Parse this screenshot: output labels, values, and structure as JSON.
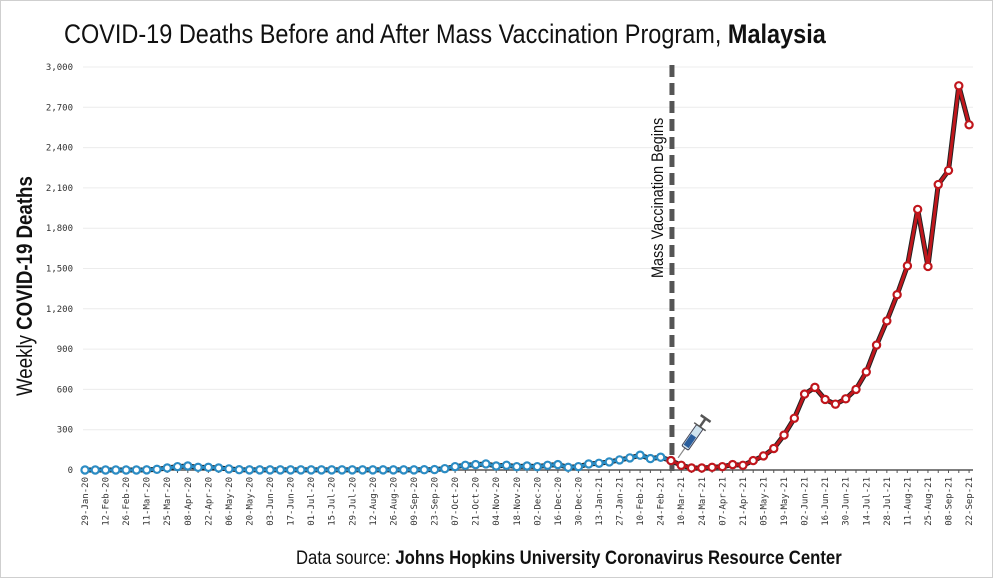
{
  "chart_data": {
    "type": "line",
    "title": "COVID-19 Deaths Before and After Mass Vaccination Program,",
    "title_bold": "Malaysia",
    "ylabel_prefix": "Weekly",
    "ylabel_bold": "COVID-19 Deaths",
    "ylim": [
      0,
      3000
    ],
    "yticks": [
      "0",
      "300",
      "600",
      "900",
      "1,200",
      "1,500",
      "1,800",
      "2,100",
      "2,400",
      "2,700",
      "3,000"
    ],
    "ytick_values": [
      0,
      300,
      600,
      900,
      1200,
      1500,
      1800,
      2100,
      2400,
      2700,
      3000
    ],
    "grid": true,
    "xtick_labels": [
      "29-Jan-20",
      "12-Feb-20",
      "26-Feb-20",
      "11-Mar-20",
      "25-Mar-20",
      "08-Apr-20",
      "22-Apr-20",
      "06-May-20",
      "20-May-20",
      "03-Jun-20",
      "17-Jun-20",
      "01-Jul-20",
      "15-Jul-20",
      "29-Jul-20",
      "12-Aug-20",
      "26-Aug-20",
      "09-Sep-20",
      "23-Sep-20",
      "07-Oct-20",
      "21-Oct-20",
      "04-Nov-20",
      "18-Nov-20",
      "02-Dec-20",
      "16-Dec-20",
      "30-Dec-20",
      "13-Jan-21",
      "27-Jan-21",
      "10-Feb-21",
      "24-Feb-21",
      "10-Mar-21",
      "24-Mar-21",
      "07-Apr-21",
      "21-Apr-21",
      "05-May-21",
      "19-May-21",
      "02-Jun-21",
      "16-Jun-21",
      "30-Jun-21",
      "14-Jul-21",
      "28-Jul-21",
      "11-Aug-21",
      "25-Aug-21",
      "08-Sep-21",
      "22-Sep-21"
    ],
    "x": [
      "29-Jan-20",
      "05-Feb-20",
      "12-Feb-20",
      "19-Feb-20",
      "26-Feb-20",
      "04-Mar-20",
      "11-Mar-20",
      "18-Mar-20",
      "25-Mar-20",
      "01-Apr-20",
      "08-Apr-20",
      "15-Apr-20",
      "22-Apr-20",
      "29-Apr-20",
      "06-May-20",
      "13-May-20",
      "20-May-20",
      "27-May-20",
      "03-Jun-20",
      "10-Jun-20",
      "17-Jun-20",
      "24-Jun-20",
      "01-Jul-20",
      "08-Jul-20",
      "15-Jul-20",
      "22-Jul-20",
      "29-Jul-20",
      "05-Aug-20",
      "12-Aug-20",
      "19-Aug-20",
      "26-Aug-20",
      "02-Sep-20",
      "09-Sep-20",
      "16-Sep-20",
      "23-Sep-20",
      "30-Sep-20",
      "07-Oct-20",
      "14-Oct-20",
      "21-Oct-20",
      "28-Oct-20",
      "04-Nov-20",
      "11-Nov-20",
      "18-Nov-20",
      "25-Nov-20",
      "02-Dec-20",
      "09-Dec-20",
      "16-Dec-20",
      "23-Dec-20",
      "30-Dec-20",
      "06-Jan-21",
      "13-Jan-21",
      "20-Jan-21",
      "27-Jan-21",
      "03-Feb-21",
      "10-Feb-21",
      "17-Feb-21",
      "24-Feb-21",
      "03-Mar-21",
      "10-Mar-21",
      "17-Mar-21",
      "24-Mar-21",
      "31-Mar-21",
      "07-Apr-21",
      "14-Apr-21",
      "21-Apr-21",
      "28-Apr-21",
      "05-May-21",
      "12-May-21",
      "19-May-21",
      "26-May-21",
      "02-Jun-21",
      "09-Jun-21",
      "16-Jun-21",
      "23-Jun-21",
      "30-Jun-21",
      "07-Jul-21",
      "14-Jul-21",
      "21-Jul-21",
      "28-Jul-21",
      "04-Aug-21",
      "11-Aug-21",
      "18-Aug-21",
      "25-Aug-21",
      "01-Sep-21",
      "08-Sep-21",
      "15-Sep-21",
      "22-Sep-21"
    ],
    "series": [
      {
        "color": "#2b8cc4",
        "values": [
          0,
          0,
          0,
          0,
          0,
          0,
          1,
          5,
          15,
          25,
          30,
          20,
          20,
          15,
          8,
          2,
          1,
          1,
          1,
          1,
          1,
          1,
          1,
          1,
          1,
          1,
          1,
          1,
          1,
          1,
          1,
          1,
          1,
          2,
          3,
          10,
          25,
          35,
          40,
          45,
          30,
          35,
          25,
          30,
          25,
          35,
          40,
          20,
          25,
          45,
          50,
          60,
          75,
          90,
          110,
          85,
          95,
          70,
          null,
          null,
          null,
          null,
          null,
          null,
          null,
          null,
          null,
          null,
          null,
          null,
          null,
          null,
          null,
          null,
          null,
          null,
          null,
          null,
          null,
          null,
          null,
          null,
          null,
          null,
          null,
          null,
          null
        ]
      },
      {
        "color": "#c0161c",
        "values": [
          null,
          null,
          null,
          null,
          null,
          null,
          null,
          null,
          null,
          null,
          null,
          null,
          null,
          null,
          null,
          null,
          null,
          null,
          null,
          null,
          null,
          null,
          null,
          null,
          null,
          null,
          null,
          null,
          null,
          null,
          null,
          null,
          null,
          null,
          null,
          null,
          null,
          null,
          null,
          null,
          null,
          null,
          null,
          null,
          null,
          null,
          null,
          null,
          null,
          null,
          null,
          null,
          null,
          null,
          null,
          null,
          null,
          70,
          35,
          15,
          15,
          20,
          25,
          40,
          35,
          70,
          105,
          160,
          260,
          385,
          565,
          615,
          525,
          490,
          530,
          600,
          730,
          930,
          1110,
          1305,
          1520,
          1940,
          1515,
          2125,
          2230,
          2860,
          2570
        ]
      }
    ],
    "annotation": {
      "label": "Mass Vaccination Begins",
      "x": "03-Mar-21",
      "icon": "syringe-icon"
    },
    "source_prefix": "Data source:",
    "source_bold": "Johns Hopkins University Coronavirus Resource Center"
  }
}
